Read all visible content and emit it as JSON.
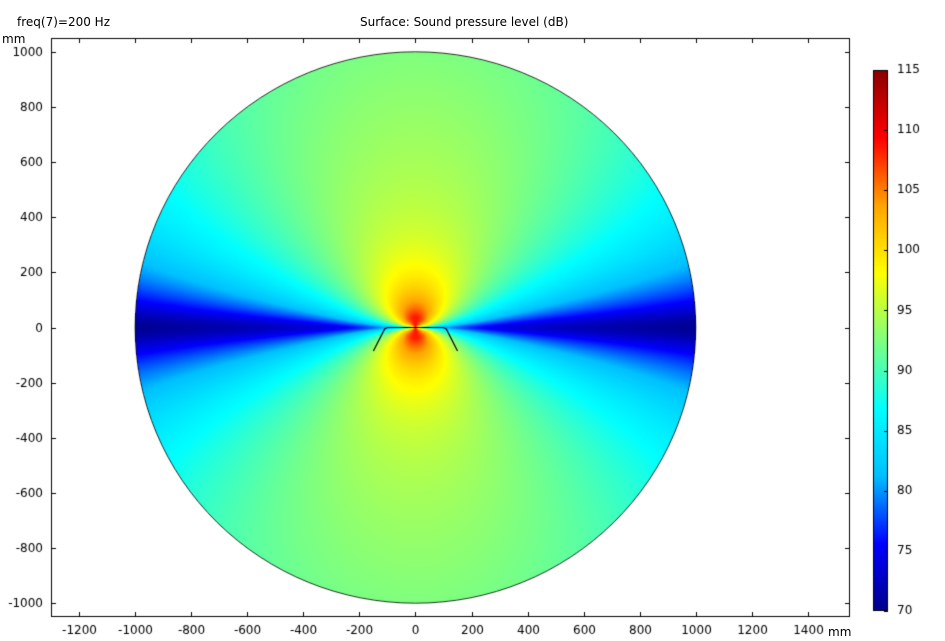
{
  "freq_label": "freq(7)=200 Hz",
  "chart_data": {
    "type": "heatmap",
    "title": "Surface: Sound pressure level (dB)",
    "xlabel": "mm",
    "ylabel": "mm",
    "xlim": [
      -1300,
      1550
    ],
    "ylim": [
      -1050,
      1050
    ],
    "x_ticks": [
      -1200,
      -1000,
      -800,
      -600,
      -400,
      -200,
      0,
      200,
      400,
      600,
      800,
      1000,
      1200,
      1400
    ],
    "y_ticks": [
      1000,
      800,
      600,
      400,
      200,
      0,
      -200,
      -400,
      -600,
      -800,
      -1000
    ],
    "domain": {
      "shape": "circle",
      "center": [
        0,
        0
      ],
      "radius": 1000
    },
    "source": {
      "outline": [
        [
          -150,
          -85
        ],
        [
          -110,
          -5
        ],
        [
          -100,
          0
        ],
        [
          100,
          0
        ],
        [
          110,
          -5
        ],
        [
          150,
          -85
        ]
      ],
      "peak_level": 115
    },
    "field": {
      "pattern": "dipole",
      "max_db": 115,
      "axis_min_db": 70,
      "far_field_db": 96
    },
    "colorbar": {
      "min": 70,
      "max": 115,
      "ticks": [
        115,
        110,
        105,
        100,
        95,
        90,
        85,
        80,
        75,
        70
      ],
      "colormap": "rainbow",
      "colors": [
        "#00008b",
        "#0000ff",
        "#00bfff",
        "#00ffff",
        "#7fff7f",
        "#ffff00",
        "#ffa500",
        "#ff0000",
        "#8b0000"
      ]
    },
    "grid": false,
    "legend": "right"
  }
}
